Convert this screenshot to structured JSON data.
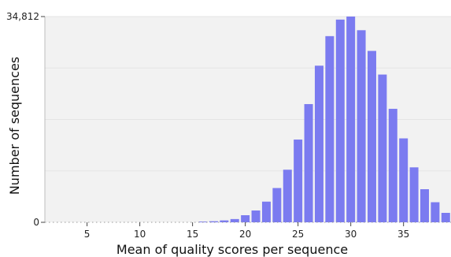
{
  "chart_data": {
    "type": "bar",
    "xlabel": "Mean of quality scores per sequence",
    "ylabel": "Number of sequences",
    "xlim": [
      1,
      39.5
    ],
    "ylim": [
      0,
      34812
    ],
    "x_ticks": [
      5,
      10,
      15,
      20,
      25,
      30,
      35
    ],
    "y_tick_labels": [
      "0",
      "34,812"
    ],
    "grid": true,
    "bar_color": "#7b7bf0",
    "plot_background": "#f2f2f2",
    "x": [
      16,
      17,
      18,
      19,
      20,
      21,
      22,
      23,
      24,
      25,
      26,
      27,
      28,
      29,
      30,
      31,
      32,
      33,
      34,
      35,
      36,
      37,
      38,
      39
    ],
    "values": [
      120,
      180,
      320,
      550,
      1200,
      2000,
      3500,
      5800,
      8900,
      14000,
      20000,
      26500,
      31500,
      34300,
      34812,
      32500,
      29000,
      25000,
      19200,
      14200,
      9300,
      5600,
      3400,
      1600
    ]
  }
}
